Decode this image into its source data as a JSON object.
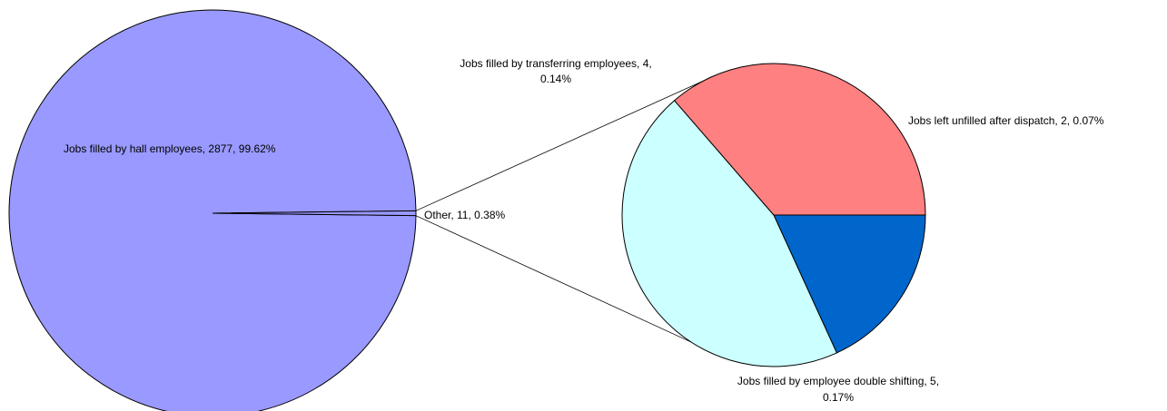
{
  "chart_data": {
    "type": "pie",
    "title": "",
    "main_pie": {
      "slices": [
        {
          "label_text": "Jobs filled by hall employees, 2877, 99.62%",
          "value": 2877,
          "percent": 99.62,
          "color": "#9999FF"
        },
        {
          "label_text": "Other, 11, 0.38%",
          "value": 11,
          "percent": 0.38,
          "color": "#9999FF"
        }
      ]
    },
    "breakout_pie": {
      "slices": [
        {
          "label_lines": [
            "Jobs left unfilled after dispatch, 2, 0.07%"
          ],
          "value": 2,
          "percent": 0.07,
          "color": "#0066CC"
        },
        {
          "label_lines": [
            "Jobs filled by employee double shifting, 5,",
            "0.17%"
          ],
          "value": 5,
          "percent": 0.17,
          "color": "#CCFFFF"
        },
        {
          "label_lines": [
            "Jobs filled by transferring employees, 4,",
            "0.14%"
          ],
          "value": 4,
          "percent": 0.14,
          "color": "#FF8080"
        }
      ]
    }
  }
}
